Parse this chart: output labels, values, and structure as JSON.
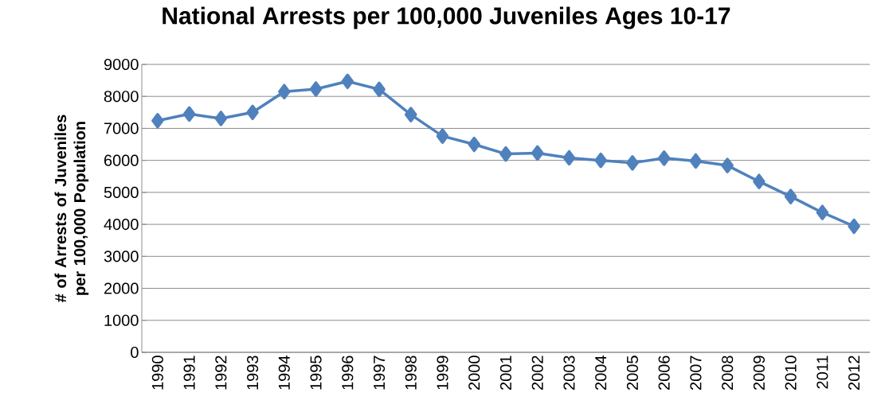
{
  "chart_data": {
    "type": "line",
    "title": "National Arrests per 100,000 Juveniles Ages 10-17",
    "ylabel": "# of Arrests of Juveniles per 100,000 Population",
    "categories": [
      "1990",
      "1991",
      "1992",
      "1993",
      "1994",
      "1995",
      "1996",
      "1997",
      "1998",
      "1999",
      "2000",
      "2001",
      "2002",
      "2003",
      "2004",
      "2005",
      "2006",
      "2007",
      "2008",
      "2009",
      "2010",
      "2011",
      "2012"
    ],
    "series": [
      {
        "color": "#4f81bd",
        "values": [
          7240,
          7450,
          7310,
          7500,
          8150,
          8230,
          8470,
          8220,
          7430,
          6760,
          6500,
          6200,
          6230,
          6080,
          6000,
          5920,
          6070,
          5980,
          5840,
          5340,
          4870,
          4370,
          3940
        ]
      }
    ],
    "ylim": [
      0,
      9000
    ],
    "yticks": [
      0,
      1000,
      2000,
      3000,
      4000,
      5000,
      6000,
      7000,
      8000,
      9000
    ],
    "grid": "y",
    "marker": "diamond",
    "line_style": "solid"
  }
}
